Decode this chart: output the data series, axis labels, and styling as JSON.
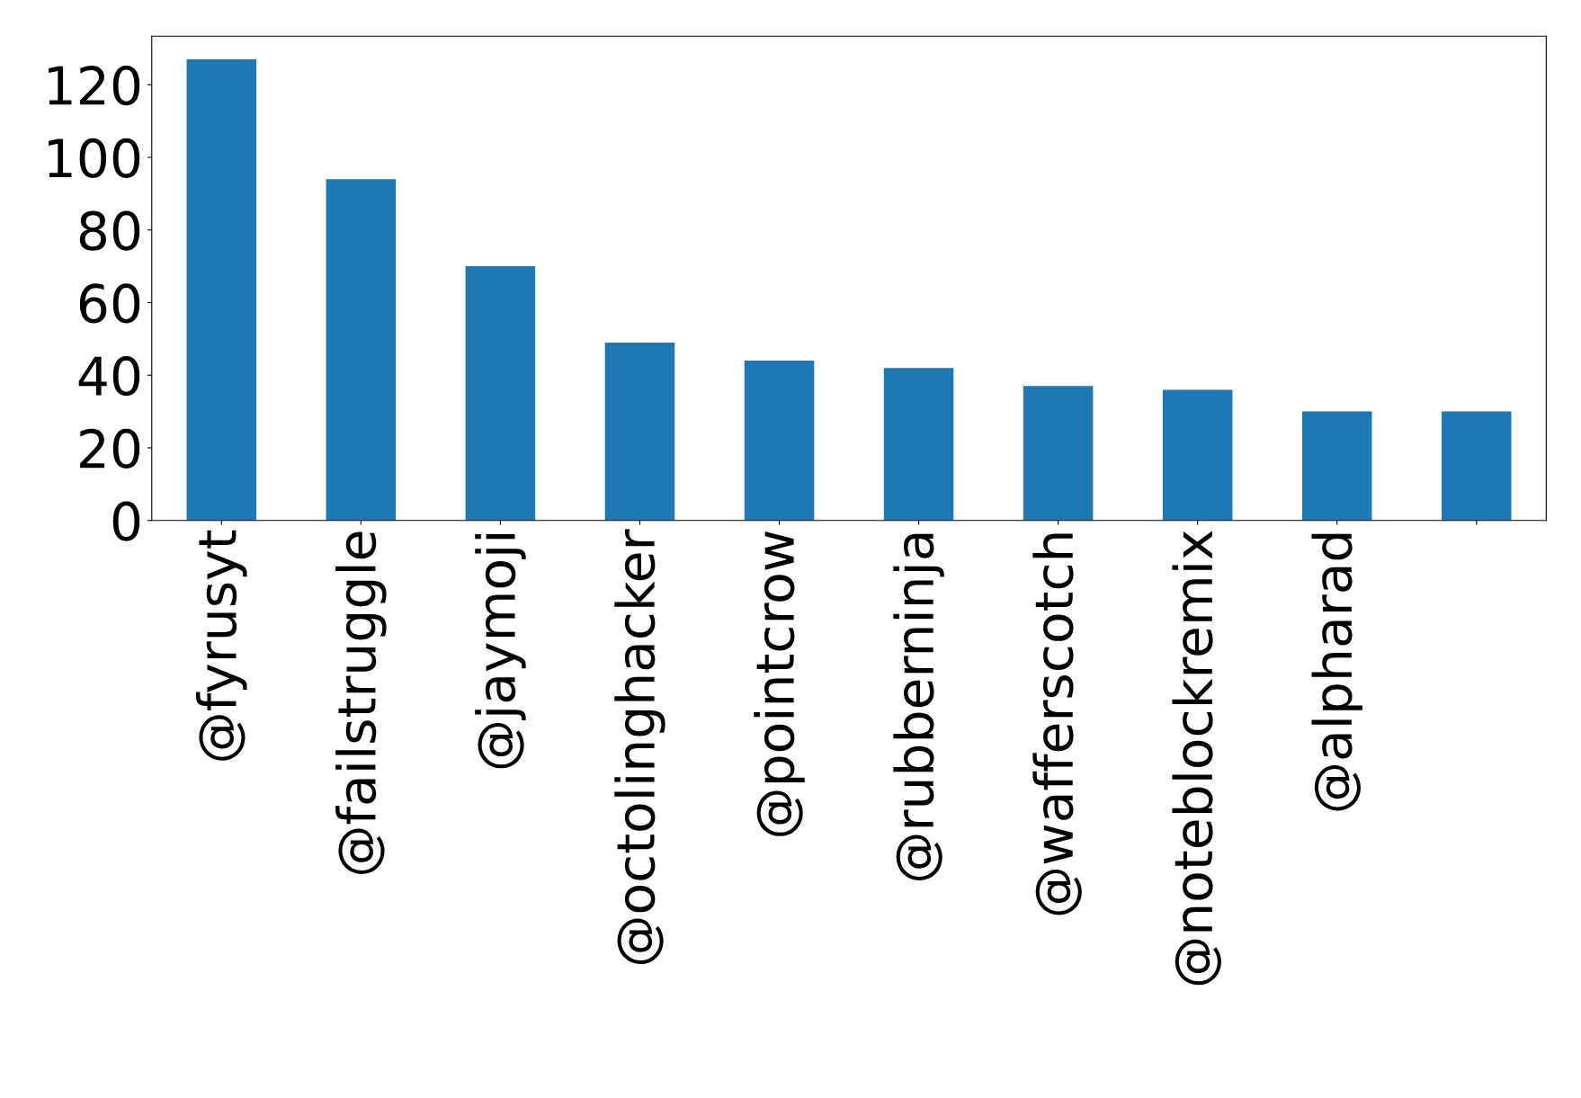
{
  "chart_data": {
    "type": "bar",
    "categories": [
      "@fyrusyt",
      "@failstruggle",
      "@jaymoji",
      "@octolinghacker",
      "@pointcrow",
      "@rubberninja",
      "@wafferscotch",
      "@noteblockremix",
      "@alpharad",
      null
    ],
    "values": [
      127,
      94,
      70,
      49,
      44,
      42,
      37,
      36,
      30,
      30
    ],
    "color": "#1f77b4",
    "ylim": [
      0,
      133.35
    ],
    "yticks": [
      0,
      20,
      40,
      60,
      80,
      100,
      120
    ],
    "grid": false,
    "legend": false
  }
}
